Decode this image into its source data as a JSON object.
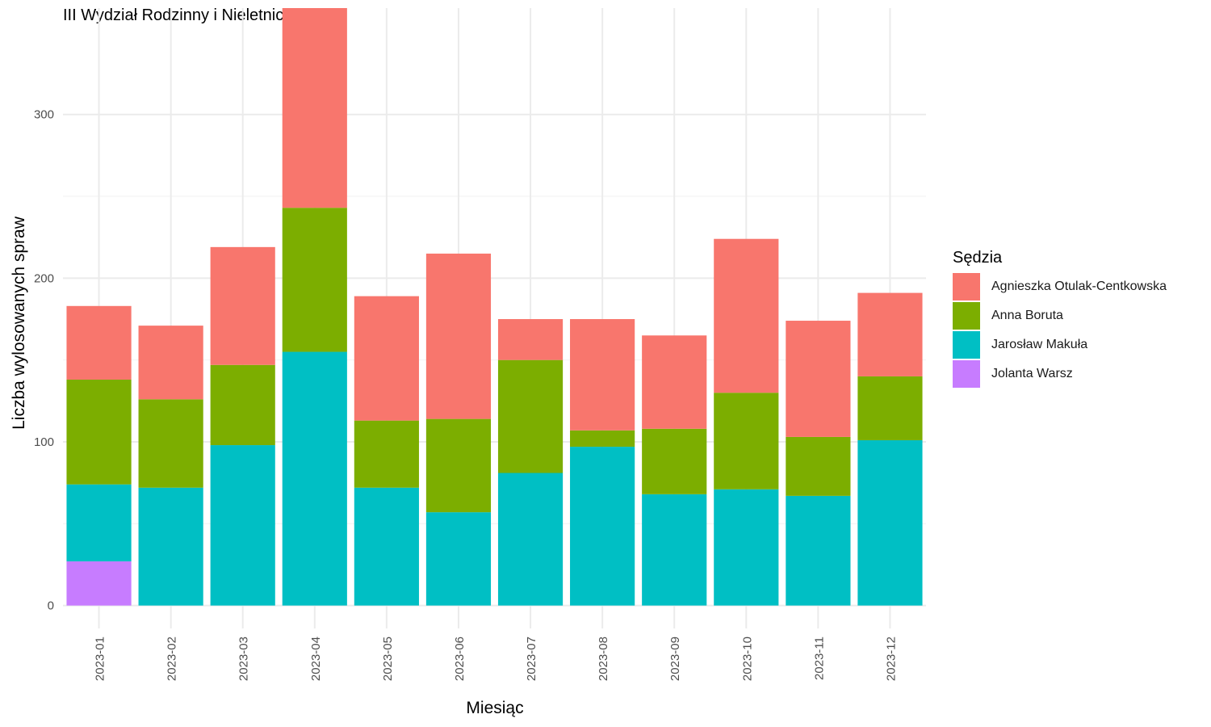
{
  "chart_data": {
    "type": "bar",
    "stacked": true,
    "title": "III Wydział Rodzinny i Nieletnich",
    "xlabel": "Miesiąc",
    "ylabel": "Liczba wylosowanych spraw",
    "ylim": [
      -14,
      365
    ],
    "yticks": [
      0,
      100,
      200,
      300
    ],
    "grid": true,
    "legend_title": "Sędzia",
    "legend_position": "right",
    "categories": [
      "2023-01",
      "2023-02",
      "2023-03",
      "2023-04",
      "2023-05",
      "2023-06",
      "2023-07",
      "2023-08",
      "2023-09",
      "2023-10",
      "2023-11",
      "2023-12"
    ],
    "series": [
      {
        "name": "Jolanta Warsz",
        "color": "#C77CFF",
        "values": [
          27,
          0,
          0,
          0,
          0,
          0,
          0,
          0,
          0,
          0,
          0,
          0
        ]
      },
      {
        "name": "Jarosław Makuła",
        "color": "#00BFC4",
        "values": [
          47,
          72,
          98,
          155,
          72,
          57,
          81,
          97,
          68,
          71,
          67,
          101
        ]
      },
      {
        "name": "Anna Boruta",
        "color": "#7CAE00",
        "values": [
          64,
          54,
          49,
          88,
          41,
          57,
          69,
          10,
          40,
          59,
          36,
          39
        ]
      },
      {
        "name": "Agnieszka Otulak-Centkowska",
        "color": "#F8766D",
        "values": [
          45,
          45,
          72,
          122,
          76,
          101,
          25,
          68,
          57,
          94,
          71,
          51
        ]
      }
    ],
    "legend_order": [
      "Agnieszka Otulak-Centkowska",
      "Anna Boruta",
      "Jarosław Makuła",
      "Jolanta Warsz"
    ]
  }
}
